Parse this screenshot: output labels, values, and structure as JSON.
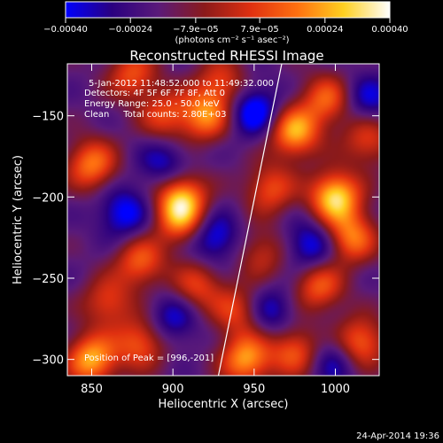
{
  "chart_data": {
    "type": "heatmap",
    "title": "Reconstructed RHESSI Image",
    "xlabel": "Heliocentric X (arcsec)",
    "ylabel": "Heliocentric Y (arcsec)",
    "xlim": [
      835,
      1027
    ],
    "ylim": [
      -310,
      -118
    ],
    "x_ticks": [
      850,
      900,
      950,
      1000
    ],
    "x_tick_labels": [
      "850",
      "900",
      "950",
      "1000"
    ],
    "y_ticks": [
      -150,
      -200,
      -250,
      -300
    ],
    "y_tick_labels": [
      "−150",
      "−200",
      "−250",
      "−300"
    ],
    "colorbar": {
      "min": -0.0004,
      "max": 0.0004,
      "ticks": [
        -0.0004,
        -0.00024,
        -7.9e-05,
        7.9e-05,
        0.00024,
        0.0004
      ],
      "tick_labels": [
        "−0.00040",
        "−0.00024",
        "−7.9e−05",
        "7.9e−05",
        "0.00024",
        "0.00040"
      ],
      "unit_label": "(photons cm⁻² s⁻¹ asec⁻²)",
      "colormap": [
        "#0000ff",
        "#2a0080",
        "#5a1a7a",
        "#8b1a1a",
        "#e03010",
        "#ff7010",
        "#ffd020",
        "#ffffff"
      ]
    },
    "annotations": [
      "5-Jan-2012 11:48:52.000 to 11:49:32.000",
      "Detectors: 4F 5F 6F 7F 8F, Att 0",
      "Energy Range: 25.0 - 50.0 keV",
      "Clean     Total counts: 2.80E+03",
      "Position of Peak = [996,-201]"
    ],
    "limb_line": {
      "x": [
        928,
        967
      ],
      "y": [
        -310,
        -118
      ],
      "color": "#ffffff"
    },
    "peak": {
      "x": 996,
      "y": -201
    },
    "sources": [
      {
        "x": 1000,
        "y": -200,
        "amp": 1.0
      },
      {
        "x": 975,
        "y": -160,
        "amp": 0.85
      },
      {
        "x": 995,
        "y": -140,
        "amp": 0.6
      },
      {
        "x": 1010,
        "y": -225,
        "amp": 0.7
      },
      {
        "x": 960,
        "y": -195,
        "amp": 0.55
      },
      {
        "x": 990,
        "y": -255,
        "amp": 0.6
      },
      {
        "x": 1015,
        "y": -290,
        "amp": 0.7
      },
      {
        "x": 975,
        "y": -295,
        "amp": 0.6
      },
      {
        "x": 940,
        "y": -270,
        "amp": 0.5
      },
      {
        "x": 945,
        "y": -300,
        "amp": 0.8
      },
      {
        "x": 915,
        "y": -255,
        "amp": 0.5
      },
      {
        "x": 905,
        "y": -200,
        "amp": 0.8
      },
      {
        "x": 905,
        "y": -215,
        "amp": 0.6
      },
      {
        "x": 920,
        "y": -150,
        "amp": 0.7
      },
      {
        "x": 895,
        "y": -150,
        "amp": 0.5
      },
      {
        "x": 875,
        "y": -125,
        "amp": 0.55
      },
      {
        "x": 850,
        "y": -180,
        "amp": 0.7
      },
      {
        "x": 880,
        "y": -240,
        "amp": 0.6
      },
      {
        "x": 860,
        "y": -265,
        "amp": 0.5
      },
      {
        "x": 850,
        "y": -300,
        "amp": 0.85
      },
      {
        "x": 880,
        "y": -290,
        "amp": 0.6
      },
      {
        "x": 930,
        "y": -130,
        "amp": 0.5
      },
      {
        "x": 1020,
        "y": -165,
        "amp": 0.5
      },
      {
        "x": 955,
        "y": -235,
        "amp": 0.4
      }
    ],
    "negatives": [
      {
        "x": 950,
        "y": -147,
        "amp": 0.6
      },
      {
        "x": 1020,
        "y": -140,
        "amp": 0.4
      },
      {
        "x": 870,
        "y": -210,
        "amp": 0.5
      },
      {
        "x": 925,
        "y": -225,
        "amp": 0.5
      },
      {
        "x": 985,
        "y": -230,
        "amp": 0.5
      },
      {
        "x": 960,
        "y": -270,
        "amp": 0.4
      },
      {
        "x": 1000,
        "y": -300,
        "amp": 0.4
      },
      {
        "x": 900,
        "y": -275,
        "amp": 0.4
      },
      {
        "x": 895,
        "y": -180,
        "amp": 0.4
      }
    ]
  },
  "footer_timestamp": "24-Apr-2014 19:36"
}
